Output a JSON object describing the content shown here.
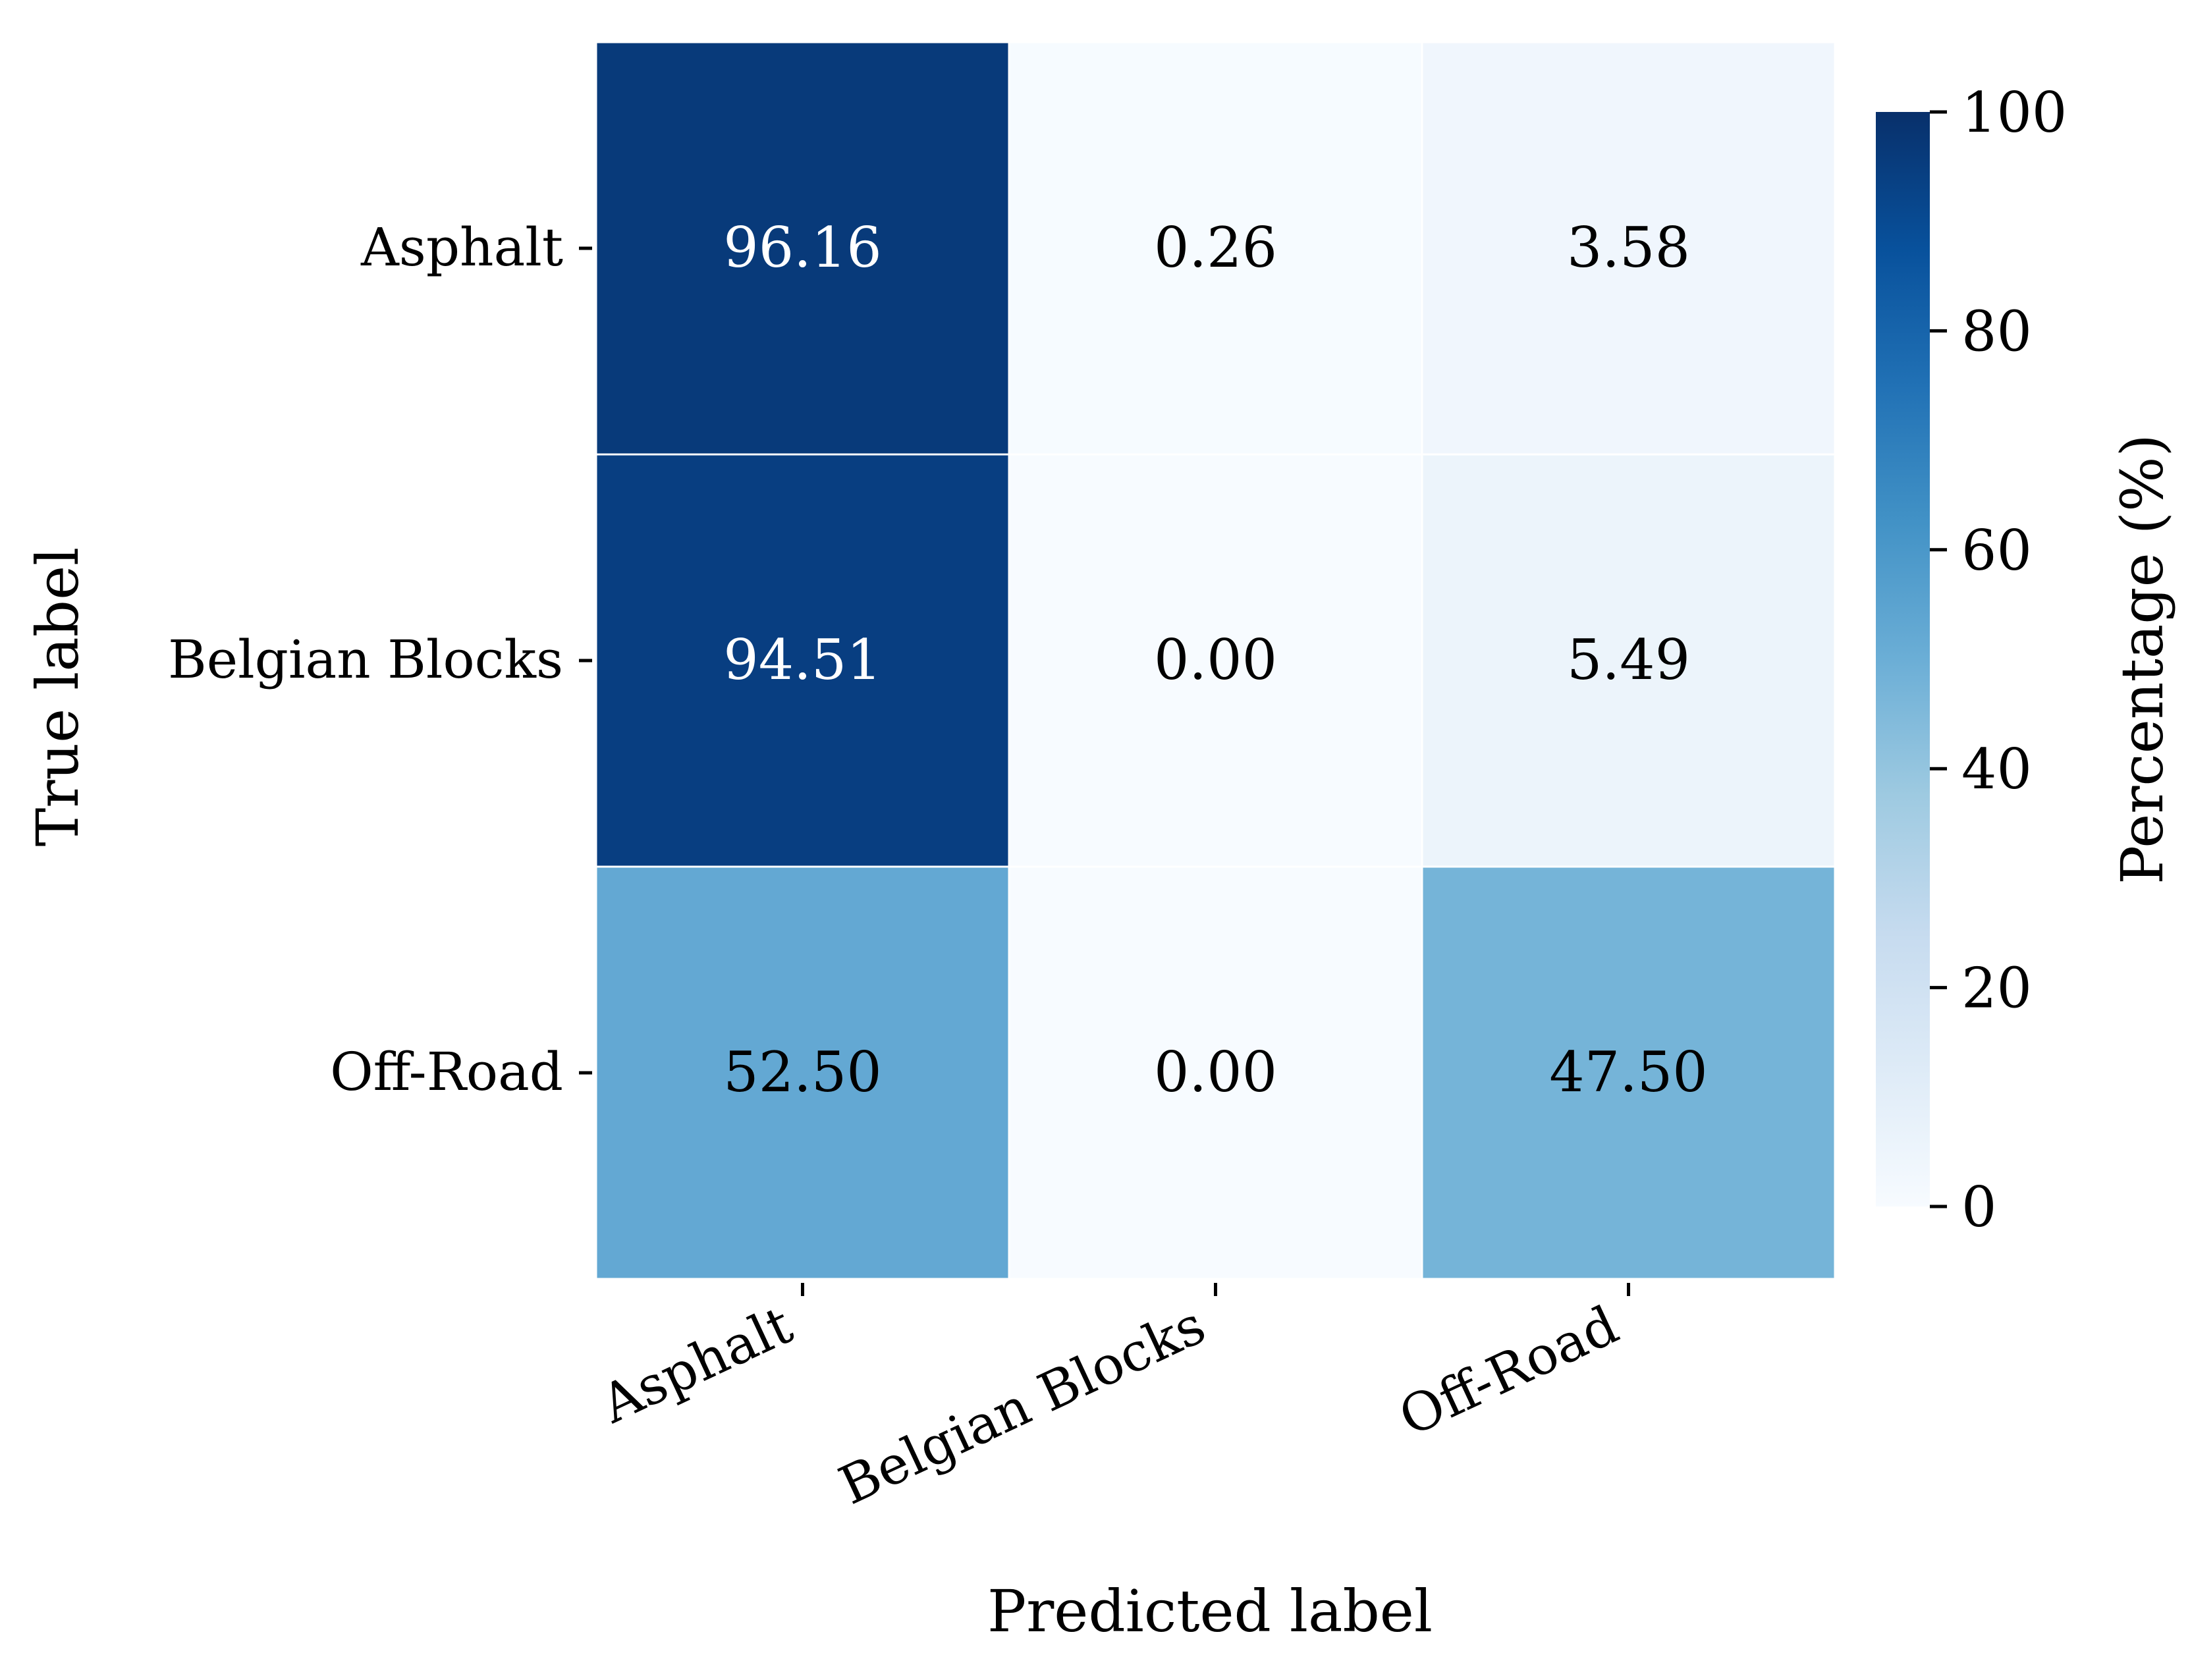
{
  "chart_data": {
    "type": "heatmap",
    "title": "",
    "xlabel": "Predicted label",
    "ylabel": "True label",
    "x_categories": [
      "Asphalt",
      "Belgian Blocks",
      "Off-Road"
    ],
    "y_categories": [
      "Asphalt",
      "Belgian Blocks",
      "Off-Road"
    ],
    "values": [
      [
        96.16,
        0.26,
        3.58
      ],
      [
        94.51,
        0.0,
        5.49
      ],
      [
        52.5,
        0.0,
        47.5
      ]
    ],
    "value_labels": [
      [
        "96.16",
        "0.26",
        "3.58"
      ],
      [
        "94.51",
        "0.00",
        "5.49"
      ],
      [
        "52.50",
        "0.00",
        "47.50"
      ]
    ],
    "colorbar": {
      "label": "Percentage (%)",
      "range": [
        0,
        100
      ],
      "ticks": [
        "0",
        "20",
        "40",
        "60",
        "80",
        "100"
      ],
      "colormap": "Blues",
      "colors": [
        "#f7fbff",
        "#deebf7",
        "#c6dbef",
        "#9ecae1",
        "#6baed6",
        "#4292c6",
        "#2171b5",
        "#08519c",
        "#08306b"
      ]
    },
    "dark_text_color": "#000000",
    "light_text_color": "#ffffff",
    "grid": false
  }
}
